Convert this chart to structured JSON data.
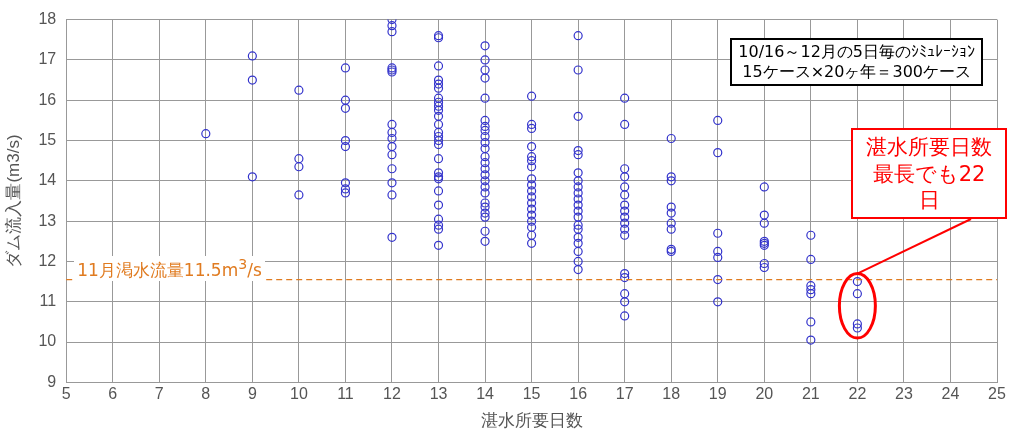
{
  "chart_data": {
    "type": "scatter",
    "xlabel": "湛水所要日数",
    "ylabel": "ダム流入量(m3/s)",
    "x": [
      8,
      9,
      9,
      9,
      10,
      10,
      10,
      10,
      11,
      11,
      11,
      11,
      11,
      11,
      11,
      11,
      12,
      12,
      12,
      12,
      12,
      12,
      12,
      12,
      12,
      12,
      12,
      12,
      12,
      12,
      12,
      13,
      13,
      13,
      13,
      13,
      13,
      13,
      13,
      13,
      13,
      13,
      13,
      13,
      13,
      13,
      13,
      13,
      13,
      13,
      13,
      13,
      13,
      13,
      13,
      13,
      13,
      14,
      14,
      14,
      14,
      14,
      14,
      14,
      14,
      14,
      14,
      14,
      14,
      14,
      14,
      14,
      14,
      14,
      14,
      14,
      14,
      14,
      14,
      14,
      14,
      15,
      15,
      15,
      15,
      15,
      15,
      15,
      15,
      15,
      15,
      15,
      15,
      15,
      15,
      15,
      15,
      15,
      15,
      16,
      16,
      16,
      16,
      16,
      16,
      16,
      16,
      16,
      16,
      16,
      16,
      16,
      16,
      16,
      16,
      16,
      16,
      16,
      16,
      17,
      17,
      17,
      17,
      17,
      17,
      17,
      17,
      17,
      17,
      17,
      17,
      17,
      17,
      17,
      17,
      17,
      18,
      18,
      18,
      18,
      18,
      18,
      18,
      18,
      18,
      19,
      19,
      19,
      19,
      19,
      19,
      19,
      20,
      20,
      20,
      20,
      20,
      20,
      20,
      20,
      21,
      21,
      21,
      21,
      21,
      21,
      21,
      22,
      22,
      22,
      22
    ],
    "values": [
      15.17,
      17.1,
      16.5,
      14.1,
      16.25,
      14.55,
      14.35,
      13.65,
      16.8,
      16.0,
      15.8,
      15.0,
      14.85,
      13.95,
      13.8,
      13.7,
      18.0,
      17.85,
      17.7,
      16.8,
      16.75,
      16.7,
      15.4,
      15.2,
      15.05,
      14.85,
      14.65,
      14.3,
      13.95,
      13.65,
      12.6,
      17.6,
      17.55,
      16.85,
      16.5,
      16.4,
      16.3,
      16.05,
      15.95,
      15.85,
      15.75,
      15.6,
      15.4,
      15.2,
      15.1,
      15.0,
      14.9,
      14.55,
      14.2,
      14.1,
      14.05,
      13.75,
      13.4,
      13.05,
      12.9,
      12.8,
      12.4,
      17.35,
      17.0,
      16.75,
      16.55,
      16.05,
      15.5,
      15.35,
      15.25,
      15.1,
      14.95,
      14.8,
      14.6,
      14.45,
      14.3,
      14.15,
      14.0,
      13.85,
      13.7,
      13.45,
      13.35,
      13.2,
      13.1,
      12.75,
      12.5,
      16.1,
      15.4,
      15.3,
      14.85,
      14.6,
      14.5,
      14.35,
      14.05,
      13.9,
      13.75,
      13.6,
      13.45,
      13.3,
      13.15,
      13.0,
      12.85,
      12.65,
      12.45,
      17.6,
      16.75,
      15.6,
      14.75,
      14.65,
      14.2,
      14.0,
      13.85,
      13.7,
      13.55,
      13.4,
      13.25,
      13.1,
      12.9,
      12.8,
      12.6,
      12.45,
      12.25,
      12.0,
      11.8,
      16.05,
      15.4,
      14.3,
      14.1,
      13.85,
      13.65,
      13.4,
      13.25,
      13.1,
      12.95,
      12.8,
      12.65,
      11.7,
      11.6,
      11.2,
      11.0,
      10.65,
      15.05,
      14.1,
      14.0,
      13.35,
      13.2,
      12.95,
      12.8,
      12.3,
      12.25,
      15.5,
      14.7,
      12.7,
      12.25,
      12.1,
      11.55,
      11.0,
      13.85,
      13.15,
      12.95,
      12.5,
      12.45,
      12.4,
      11.95,
      11.85,
      12.65,
      12.05,
      11.4,
      11.3,
      11.2,
      10.5,
      10.05,
      11.5,
      11.2,
      10.45,
      10.35
    ],
    "color": "#3333cc",
    "marker": "circle",
    "grid": true,
    "legend": false,
    "xlim": [
      5,
      25
    ],
    "xticks": [
      5,
      6,
      7,
      8,
      9,
      10,
      11,
      12,
      13,
      14,
      15,
      16,
      17,
      18,
      19,
      20,
      21,
      22,
      23,
      24,
      25
    ],
    "ylim": [
      9,
      18
    ],
    "yticks": [
      9,
      10,
      11,
      12,
      13,
      14,
      15,
      16,
      17,
      18
    ],
    "ref_lines": [
      {
        "axis": "y",
        "value": 11.55,
        "label": "11月渇水流量11.5m$^{3}$/s",
        "color": "#e07b20",
        "line_style": "dashed"
      }
    ],
    "annotations": [
      "10/16～12月の5日毎のｼﾐｭﾚｰｼｮﾝ\n15ケース×20ヶ年＝300ケース",
      {
        "text": "湛水所要日数最長でも22日",
        "x": 22,
        "y": 11.5
      }
    ]
  }
}
